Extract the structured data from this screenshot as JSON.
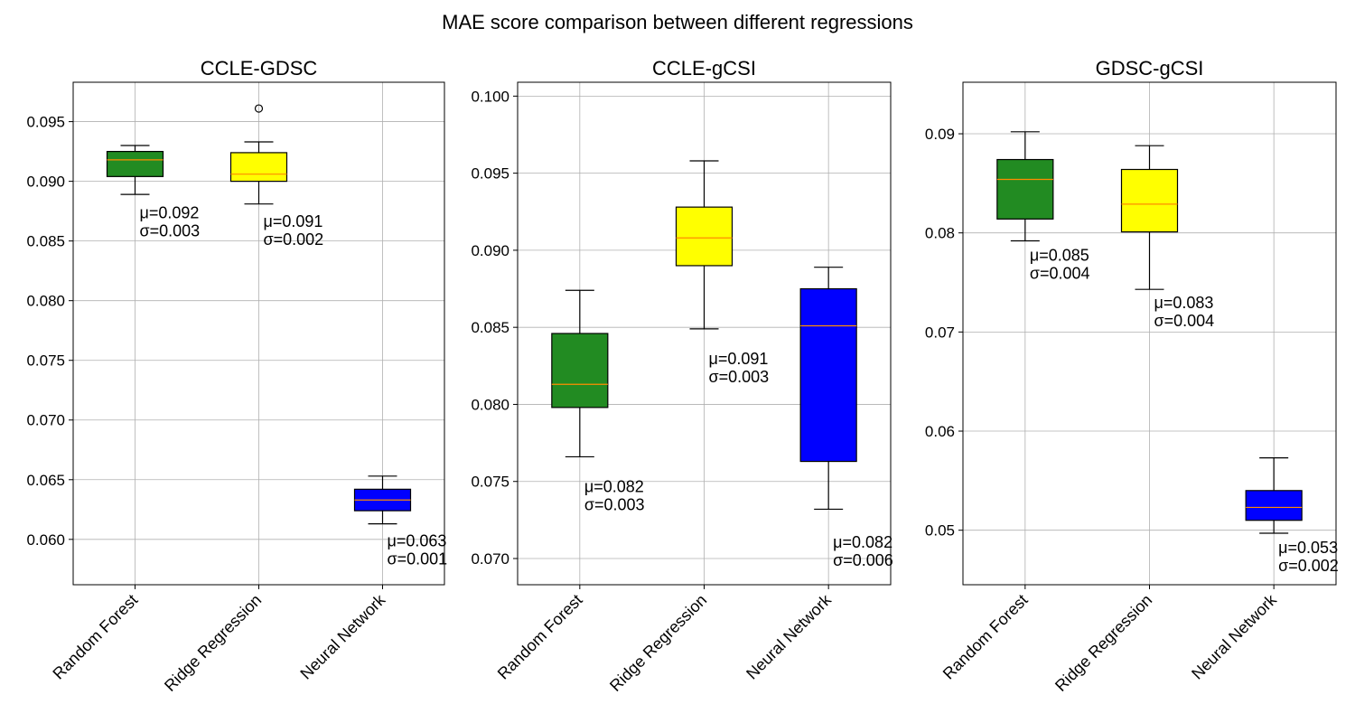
{
  "figure": {
    "title": "MAE score comparison between different regressions"
  },
  "chart_data": [
    {
      "type": "box",
      "title": "CCLE-GDSC",
      "xlabel": "",
      "ylabel": "",
      "categories": [
        "Random Forest",
        "Ridge Regression",
        "Neural Network"
      ],
      "colors": [
        "#228b22",
        "#ffff00",
        "#0000ff"
      ],
      "median_color": "#ff8c00",
      "grid": true,
      "ylim": [
        0.0562,
        0.0983
      ],
      "yticks": [
        0.06,
        0.065,
        0.07,
        0.075,
        0.08,
        0.085,
        0.09,
        0.095
      ],
      "ytick_labels": [
        "0.060",
        "0.065",
        "0.070",
        "0.075",
        "0.080",
        "0.085",
        "0.090",
        "0.095"
      ],
      "boxes": [
        {
          "whisker_low": 0.0889,
          "q1": 0.0904,
          "median": 0.0918,
          "q3": 0.0925,
          "whisker_high": 0.093,
          "fliers": []
        },
        {
          "whisker_low": 0.0881,
          "q1": 0.09,
          "median": 0.0906,
          "q3": 0.0924,
          "whisker_high": 0.0933,
          "fliers": [
            0.0961
          ]
        },
        {
          "whisker_low": 0.0613,
          "q1": 0.0624,
          "median": 0.0633,
          "q3": 0.0642,
          "whisker_high": 0.0653,
          "fliers": []
        }
      ],
      "annotations": [
        {
          "box": 0,
          "y": 0.0869,
          "mu": "μ=0.092",
          "sigma": "σ=0.003"
        },
        {
          "box": 1,
          "y": 0.0862,
          "mu": "μ=0.091",
          "sigma": "σ=0.002"
        },
        {
          "box": 2,
          "y": 0.0594,
          "mu": "μ=0.063",
          "sigma": "σ=0.001"
        }
      ]
    },
    {
      "type": "box",
      "title": "CCLE-gCSI",
      "xlabel": "",
      "ylabel": "",
      "categories": [
        "Random Forest",
        "Ridge Regression",
        "Neural Network"
      ],
      "colors": [
        "#228b22",
        "#ffff00",
        "#0000ff"
      ],
      "median_color": "#ff8c00",
      "grid": true,
      "ylim": [
        0.0683,
        0.1009
      ],
      "yticks": [
        0.07,
        0.075,
        0.08,
        0.085,
        0.09,
        0.095,
        0.1
      ],
      "ytick_labels": [
        "0.070",
        "0.075",
        "0.080",
        "0.085",
        "0.090",
        "0.095",
        "0.100"
      ],
      "boxes": [
        {
          "whisker_low": 0.0766,
          "q1": 0.0798,
          "median": 0.0813,
          "q3": 0.0846,
          "whisker_high": 0.0874,
          "fliers": []
        },
        {
          "whisker_low": 0.0849,
          "q1": 0.089,
          "median": 0.0908,
          "q3": 0.0928,
          "whisker_high": 0.0958,
          "fliers": []
        },
        {
          "whisker_low": 0.0732,
          "q1": 0.0763,
          "median": 0.0851,
          "q3": 0.0875,
          "whisker_high": 0.0889,
          "fliers": []
        }
      ],
      "annotations": [
        {
          "box": 0,
          "y": 0.0743,
          "mu": "μ=0.082",
          "sigma": "σ=0.003"
        },
        {
          "box": 1,
          "y": 0.0826,
          "mu": "μ=0.091",
          "sigma": "σ=0.003"
        },
        {
          "box": 2,
          "y": 0.0707,
          "mu": "μ=0.082",
          "sigma": "σ=0.006"
        }
      ]
    },
    {
      "type": "box",
      "title": "GDSC-gCSI",
      "xlabel": "",
      "ylabel": "",
      "categories": [
        "Random Forest",
        "Ridge Regression",
        "Neural Network"
      ],
      "colors": [
        "#228b22",
        "#ffff00",
        "#0000ff"
      ],
      "median_color": "#ff8c00",
      "grid": true,
      "ylim": [
        0.0445,
        0.0952
      ],
      "yticks": [
        0.05,
        0.06,
        0.07,
        0.08,
        0.09
      ],
      "ytick_labels": [
        "0.05",
        "0.06",
        "0.07",
        "0.08",
        "0.09"
      ],
      "boxes": [
        {
          "whisker_low": 0.0792,
          "q1": 0.0814,
          "median": 0.0854,
          "q3": 0.0874,
          "whisker_high": 0.0902,
          "fliers": []
        },
        {
          "whisker_low": 0.0743,
          "q1": 0.0801,
          "median": 0.0829,
          "q3": 0.0864,
          "whisker_high": 0.0888,
          "fliers": []
        },
        {
          "whisker_low": 0.0497,
          "q1": 0.051,
          "median": 0.0523,
          "q3": 0.054,
          "whisker_high": 0.0573,
          "fliers": []
        }
      ],
      "annotations": [
        {
          "box": 0,
          "y": 0.0772,
          "mu": "μ=0.085",
          "sigma": "σ=0.004"
        },
        {
          "box": 1,
          "y": 0.0724,
          "mu": "μ=0.083",
          "sigma": "σ=0.004"
        },
        {
          "box": 2,
          "y": 0.0477,
          "mu": "μ=0.053",
          "sigma": "σ=0.002"
        }
      ]
    }
  ]
}
